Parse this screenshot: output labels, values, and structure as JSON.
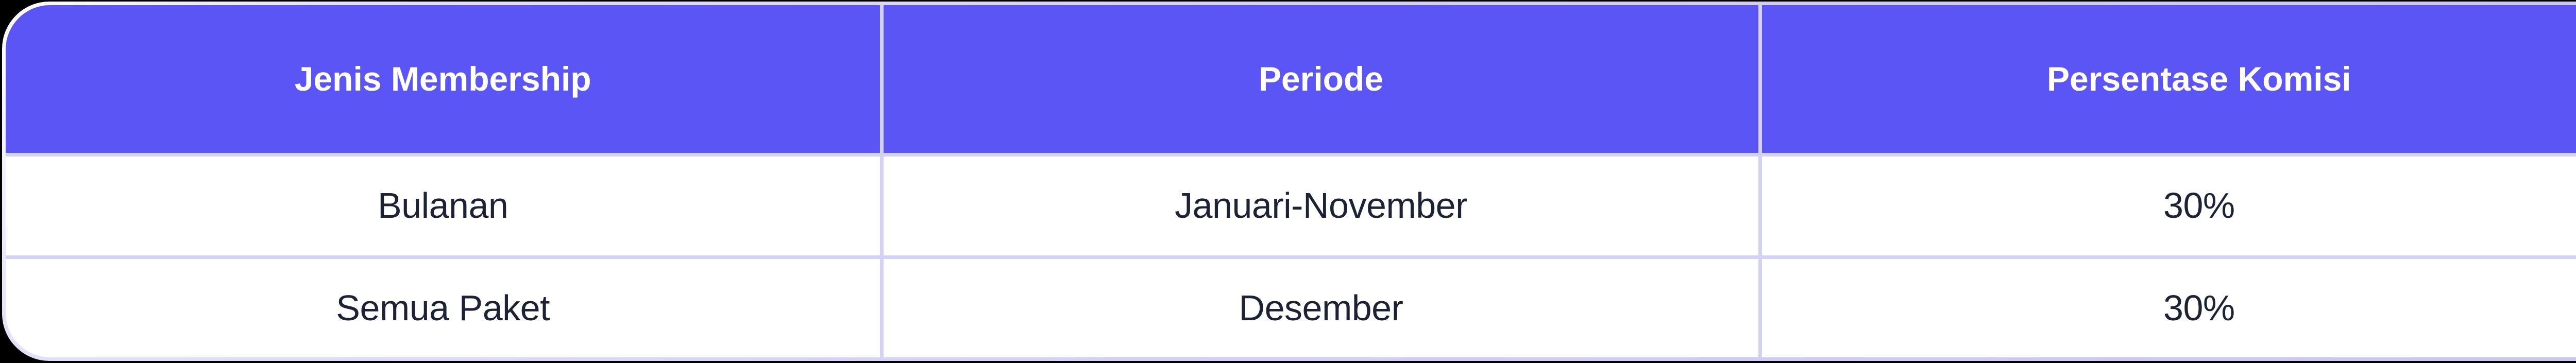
{
  "chart_data": {
    "type": "table",
    "columns": [
      "Jenis Membership",
      "Periode",
      "Persentase Komisi"
    ],
    "rows": [
      [
        "Bulanan",
        "Januari-November",
        "30%"
      ],
      [
        "Semua Paket",
        "Desember",
        "30%"
      ]
    ],
    "title": "",
    "legend": false,
    "grid": true
  },
  "table": {
    "headers": [
      {
        "label": "Jenis Membership"
      },
      {
        "label": "Periode"
      },
      {
        "label": "Persentase Komisi"
      }
    ],
    "rows": [
      {
        "cells": [
          "Bulanan",
          "Januari-November",
          "30%"
        ]
      },
      {
        "cells": [
          "Semua Paket",
          "Desember",
          "30%"
        ]
      }
    ]
  },
  "colors": {
    "page_background": "#000000",
    "header_background": "#5B55F5",
    "header_text": "#FFFFFF",
    "cell_background": "#FFFFFF",
    "cell_text": "#1B2334",
    "grid_border": "#D4D1F7",
    "border_highlight": "#FFFFFF"
  }
}
